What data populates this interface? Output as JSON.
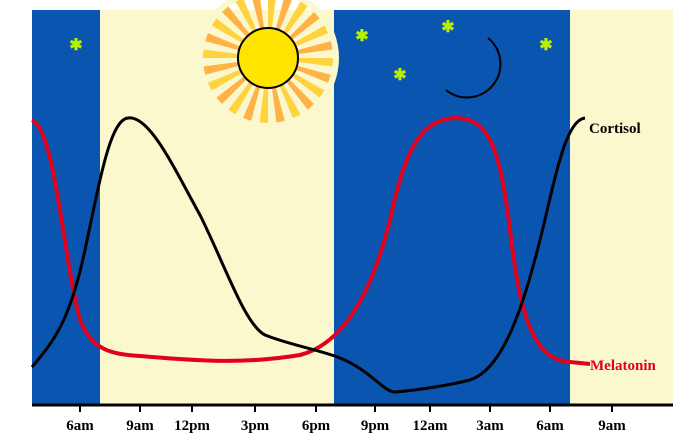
{
  "axis": {
    "tick_labels": [
      "6am",
      "9am",
      "12pm",
      "3pm",
      "6pm",
      "9pm",
      "12am",
      "3am",
      "6am",
      "9am"
    ]
  },
  "curves": {
    "cortisol": "Cortisol",
    "melatonin": "Melatonin"
  }
}
